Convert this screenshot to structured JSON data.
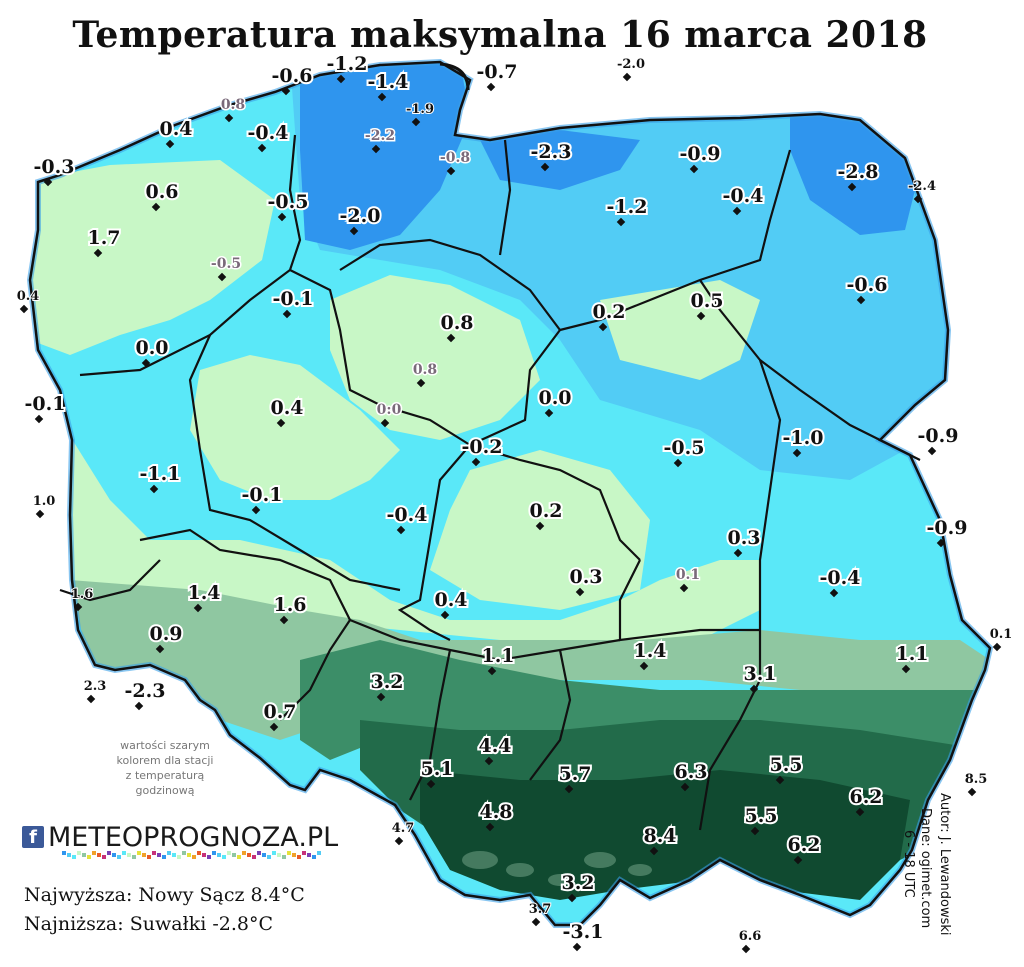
{
  "title": "Temperatura maksymalna 16 marca 2018",
  "note": [
    "wartości szarym",
    "kolorem dla stacji",
    "z temperaturą",
    "godzinową"
  ],
  "logo": {
    "fb": "f",
    "text": "METEOPROGNOZA.PL"
  },
  "stats": {
    "max": "Najwyższa: Nowy Sącz 8.4°C",
    "min": "Najniższa: Suwałki -2.8°C"
  },
  "credits": {
    "author": "Autor: J. Lewandowski",
    "data": "Dane: ogimet.com",
    "hours": "6 - 18 UTC"
  },
  "colors": {
    "very_cold": "#2f95ee",
    "cold": "#52ccf5",
    "cool": "#5ae8f8",
    "near_zero": "#c8f7c6",
    "mild": "#8fc7a1",
    "warm": "#3c8e68",
    "warmer": "#226b4a",
    "warmest": "#104a30",
    "border": "#111111"
  },
  "stations": [
    {
      "v": "-1.2",
      "style": "big"
    },
    {
      "v": "-0.6",
      "style": "big"
    },
    {
      "v": "-1.4",
      "style": "big"
    },
    {
      "v": "-0.7",
      "style": "big"
    },
    {
      "v": "-2.0",
      "style": "small"
    },
    {
      "v": "0.8",
      "style": "gray"
    },
    {
      "v": "-1.9",
      "style": "small"
    },
    {
      "v": "-2.2",
      "style": "gray"
    },
    {
      "v": "0.4",
      "style": "big"
    },
    {
      "v": "-0.4",
      "style": "big"
    },
    {
      "v": "-0.8",
      "style": "gray"
    },
    {
      "v": "-2.3",
      "style": "big"
    },
    {
      "v": "-0.9",
      "style": "big"
    },
    {
      "v": "-2.8",
      "style": "big"
    },
    {
      "v": "-0.3",
      "style": "big"
    },
    {
      "v": "0.6",
      "style": "big"
    },
    {
      "v": "-0.5",
      "style": "big"
    },
    {
      "v": "-2.0",
      "style": "big"
    },
    {
      "v": "-1.2",
      "style": "big"
    },
    {
      "v": "-0.4",
      "style": "big"
    },
    {
      "v": "-2.4",
      "style": "small"
    },
    {
      "v": "1.7",
      "style": "big"
    },
    {
      "v": "-0.5",
      "style": "gray"
    },
    {
      "v": "-0.6",
      "style": "big"
    },
    {
      "v": "0.4",
      "style": "small"
    },
    {
      "v": "-0.1",
      "style": "big"
    },
    {
      "v": "0.8",
      "style": "big"
    },
    {
      "v": "0.2",
      "style": "big"
    },
    {
      "v": "0.5",
      "style": "big"
    },
    {
      "v": "0.0",
      "style": "big"
    },
    {
      "v": "0.8",
      "style": "gray"
    },
    {
      "v": "-0.1",
      "style": "big"
    },
    {
      "v": "0.4",
      "style": "big"
    },
    {
      "v": "0:0",
      "style": "gray"
    },
    {
      "v": "0.0",
      "style": "big"
    },
    {
      "v": "-0.2",
      "style": "big"
    },
    {
      "v": "-1.0",
      "style": "big"
    },
    {
      "v": "-0.5",
      "style": "big"
    },
    {
      "v": "-0.9",
      "style": "big"
    },
    {
      "v": "-1.1",
      "style": "big"
    },
    {
      "v": "1.0",
      "style": "small"
    },
    {
      "v": "-0.1",
      "style": "big"
    },
    {
      "v": "-0.4",
      "style": "big"
    },
    {
      "v": "0.2",
      "style": "big"
    },
    {
      "v": "0.3",
      "style": "big"
    },
    {
      "v": "-0.9",
      "style": "big"
    },
    {
      "v": "1.6",
      "style": "small"
    },
    {
      "v": "1.4",
      "style": "big"
    },
    {
      "v": "1.6",
      "style": "big"
    },
    {
      "v": "0.4",
      "style": "big"
    },
    {
      "v": "0.3",
      "style": "big"
    },
    {
      "v": "0.1",
      "style": "gray"
    },
    {
      "v": "-0.4",
      "style": "big"
    },
    {
      "v": "0.9",
      "style": "big"
    },
    {
      "v": "0.1",
      "style": "small"
    },
    {
      "v": "2.3",
      "style": "small"
    },
    {
      "v": "-2.3",
      "style": "big"
    },
    {
      "v": "3.2",
      "style": "big"
    },
    {
      "v": "1.1",
      "style": "big"
    },
    {
      "v": "1.4",
      "style": "big"
    },
    {
      "v": "3.1",
      "style": "big"
    },
    {
      "v": "1.1",
      "style": "big"
    },
    {
      "v": "0.7",
      "style": "big"
    },
    {
      "v": "4.4",
      "style": "big"
    },
    {
      "v": "5.1",
      "style": "big"
    },
    {
      "v": "5.7",
      "style": "big"
    },
    {
      "v": "6.3",
      "style": "big"
    },
    {
      "v": "5.5",
      "style": "big"
    },
    {
      "v": "8.5",
      "style": "small"
    },
    {
      "v": "6.2",
      "style": "big"
    },
    {
      "v": "4.8",
      "style": "big"
    },
    {
      "v": "5.5",
      "style": "big"
    },
    {
      "v": "4.7",
      "style": "small"
    },
    {
      "v": "8.4",
      "style": "big"
    },
    {
      "v": "6.2",
      "style": "big"
    },
    {
      "v": "3.2",
      "style": "big"
    },
    {
      "v": "3.7",
      "style": "small"
    },
    {
      "v": "-3.1",
      "style": "big"
    },
    {
      "v": "6.6",
      "style": "small"
    }
  ]
}
